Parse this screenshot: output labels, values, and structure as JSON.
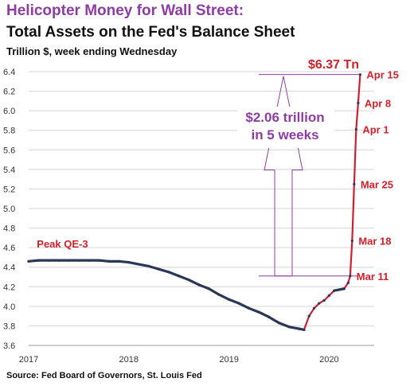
{
  "header": {
    "title": "Helicopter Money for Wall Street:",
    "subtitle": "Total Assets on the Fed's Balance Sheet",
    "units": "Trillion $, week ending Wednesday"
  },
  "footer": {
    "source": "Source: Fed Board of Governors, St. Louis Fed"
  },
  "colors": {
    "line": "#2a3757",
    "marker": "#cc2030",
    "accent": "#d0202a",
    "annotation": "#8d3da2",
    "grid": "#d4d4d4"
  },
  "chart_data": {
    "type": "line",
    "title": "Total Assets on the Fed's Balance Sheet",
    "ylabel": "Trillion $, week ending Wednesday",
    "xlim": [
      2017.0,
      2020.45
    ],
    "ylim": [
      3.6,
      6.4
    ],
    "grid": "horizontal",
    "x_ticks": [
      {
        "value": 2017,
        "label": "2017"
      },
      {
        "value": 2018,
        "label": "2018"
      },
      {
        "value": 2019,
        "label": "2019"
      },
      {
        "value": 2020,
        "label": "2020"
      }
    ],
    "y_ticks": [
      {
        "value": 3.6,
        "label": "3.6"
      },
      {
        "value": 3.8,
        "label": "3.8"
      },
      {
        "value": 4.0,
        "label": "4.0"
      },
      {
        "value": 4.2,
        "label": "4.2"
      },
      {
        "value": 4.4,
        "label": "4.4"
      },
      {
        "value": 4.6,
        "label": "4.6"
      },
      {
        "value": 4.8,
        "label": "4.8"
      },
      {
        "value": 5.0,
        "label": "5.0"
      },
      {
        "value": 5.2,
        "label": "5.2"
      },
      {
        "value": 5.4,
        "label": "5.4"
      },
      {
        "value": 5.6,
        "label": "5.6"
      },
      {
        "value": 5.8,
        "label": "5.8"
      },
      {
        "value": 6.0,
        "label": "6.0"
      },
      {
        "value": 6.2,
        "label": "6.2"
      },
      {
        "value": 6.4,
        "label": "6.4"
      }
    ],
    "series": [
      {
        "points": [
          [
            2017.0,
            4.46
          ],
          [
            2017.1,
            4.47
          ],
          [
            2017.2,
            4.47
          ],
          [
            2017.3,
            4.47
          ],
          [
            2017.4,
            4.47
          ],
          [
            2017.5,
            4.47
          ],
          [
            2017.6,
            4.47
          ],
          [
            2017.7,
            4.47
          ],
          [
            2017.8,
            4.46
          ],
          [
            2017.9,
            4.46
          ],
          [
            2018.0,
            4.45
          ],
          [
            2018.1,
            4.43
          ],
          [
            2018.2,
            4.41
          ],
          [
            2018.3,
            4.38
          ],
          [
            2018.4,
            4.35
          ],
          [
            2018.5,
            4.31
          ],
          [
            2018.6,
            4.27
          ],
          [
            2018.7,
            4.22
          ],
          [
            2018.8,
            4.18
          ],
          [
            2018.9,
            4.12
          ],
          [
            2019.0,
            4.07
          ],
          [
            2019.1,
            4.03
          ],
          [
            2019.2,
            3.98
          ],
          [
            2019.3,
            3.94
          ],
          [
            2019.4,
            3.89
          ],
          [
            2019.5,
            3.83
          ],
          [
            2019.6,
            3.79
          ],
          [
            2019.7,
            3.77
          ],
          [
            2019.75,
            3.76
          ],
          [
            2019.8,
            3.9
          ],
          [
            2019.85,
            3.98
          ],
          [
            2019.9,
            4.03
          ],
          [
            2019.95,
            4.06
          ],
          [
            2020.0,
            4.11
          ],
          [
            2020.05,
            4.16
          ],
          [
            2020.1,
            4.17
          ],
          [
            2020.15,
            4.18
          ],
          [
            2020.19,
            4.24
          ],
          [
            2020.21,
            4.31
          ],
          [
            2020.23,
            4.67
          ],
          [
            2020.25,
            5.25
          ],
          [
            2020.27,
            5.81
          ],
          [
            2020.29,
            6.08
          ],
          [
            2020.31,
            6.37
          ]
        ]
      }
    ],
    "annotations": [
      {
        "text": "Peak QE-3",
        "x": 2017.05,
        "y": 4.52
      },
      {
        "text": "$6.37 Tn",
        "x": 2020.31,
        "y": 6.37
      },
      {
        "text": "$2.06 trillion",
        "lines": [
          "$2.06 trillion",
          "in 5 weeks"
        ],
        "from": 4.31,
        "to": 6.37
      },
      {
        "text": "Apr 15",
        "x": 2020.31,
        "y": 6.37
      },
      {
        "text": "Apr 8",
        "x": 2020.29,
        "y": 6.08
      },
      {
        "text": "Apr 1",
        "x": 2020.27,
        "y": 5.81
      },
      {
        "text": "Mar 25",
        "x": 2020.25,
        "y": 5.25
      },
      {
        "text": "Mar 18",
        "x": 2020.23,
        "y": 4.67
      },
      {
        "text": "Mar 11",
        "x": 2020.21,
        "y": 4.31
      }
    ]
  }
}
